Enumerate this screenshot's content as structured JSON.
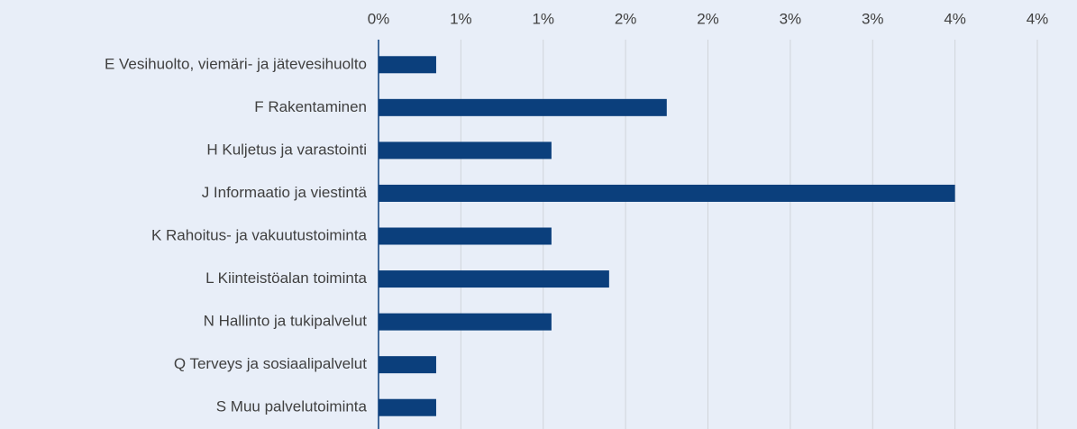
{
  "chart_data": {
    "type": "bar",
    "orientation": "horizontal",
    "categories": [
      "E Vesihuolto, viemäri- ja jätevesihuolto",
      "F Rakentaminen",
      "H Kuljetus ja varastointi",
      "J Informaatio ja viestintä",
      "K Rahoitus- ja vakuutustoiminta",
      "L Kiinteistöalan toiminta",
      "N Hallinto ja tukipalvelut",
      "Q Terveys ja sosiaalipalvelut",
      "S Muu palvelutoiminta"
    ],
    "values": [
      0.35,
      1.75,
      1.05,
      3.5,
      1.05,
      1.4,
      1.05,
      0.35,
      0.35
    ],
    "color": "#0b3f7c",
    "xlim": [
      0,
      4
    ],
    "xticks": [
      {
        "value": 0,
        "label": "0%"
      },
      {
        "value": 0.5,
        "label": "1%"
      },
      {
        "value": 1,
        "label": "1%"
      },
      {
        "value": 1.5,
        "label": "2%"
      },
      {
        "value": 2,
        "label": "2%"
      },
      {
        "value": 2.5,
        "label": "3%"
      },
      {
        "value": 3,
        "label": "3%"
      },
      {
        "value": 3.5,
        "label": "4%"
      },
      {
        "value": 4,
        "label": "4%"
      }
    ],
    "grid": true
  }
}
